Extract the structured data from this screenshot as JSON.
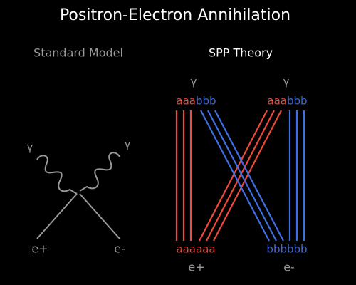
{
  "title": "Positron-Electron Annihilation",
  "standard_model": {
    "label": "Standard Model",
    "photons": [
      "γ",
      "γ"
    ],
    "particles": [
      "e+",
      "e-"
    ]
  },
  "spp_theory": {
    "label": "SPP Theory",
    "photons": [
      {
        "symbol": "γ",
        "red": "aaa",
        "blue": "bbb"
      },
      {
        "symbol": "γ",
        "red": "aaa",
        "blue": "bbb"
      }
    ],
    "bottom": {
      "red": "aaaaaa",
      "blue": "bbbbbb"
    },
    "particles": [
      "e+",
      "e-"
    ]
  }
}
